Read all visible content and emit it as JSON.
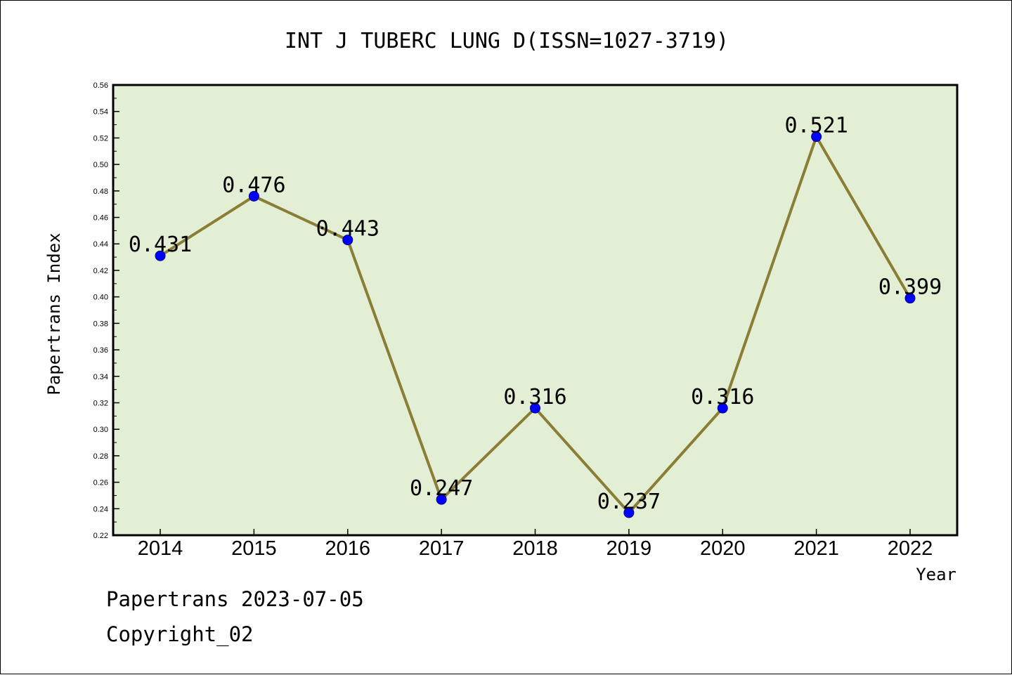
{
  "chart_data": {
    "type": "line",
    "title": "INT J TUBERC LUNG D(ISSN=1027-3719)",
    "xlabel": "Year",
    "ylabel": "Papertrans Index",
    "categories": [
      "2014",
      "2015",
      "2016",
      "2017",
      "2018",
      "2019",
      "2020",
      "2021",
      "2022"
    ],
    "values": [
      0.431,
      0.476,
      0.443,
      0.247,
      0.316,
      0.237,
      0.316,
      0.521,
      0.399
    ],
    "data_labels": [
      "0.431",
      "0.476",
      "0.443",
      "0.247",
      "0.316",
      "0.237",
      "0.316",
      "0.521",
      "0.399"
    ],
    "ylim": [
      0.22,
      0.56
    ],
    "yticks": [
      "0.22",
      "0.24",
      "0.26",
      "0.28",
      "0.30",
      "0.32",
      "0.34",
      "0.36",
      "0.38",
      "0.40",
      "0.42",
      "0.44",
      "0.46",
      "0.48",
      "0.50",
      "0.52",
      "0.54",
      "0.56"
    ],
    "grid": false,
    "colors": {
      "plot_background": "#e2efd4",
      "line": "#8b7d35",
      "marker": "#0000ff"
    }
  },
  "footer": {
    "line1": "Papertrans 2023-07-05",
    "line2": "Copyright_02"
  }
}
